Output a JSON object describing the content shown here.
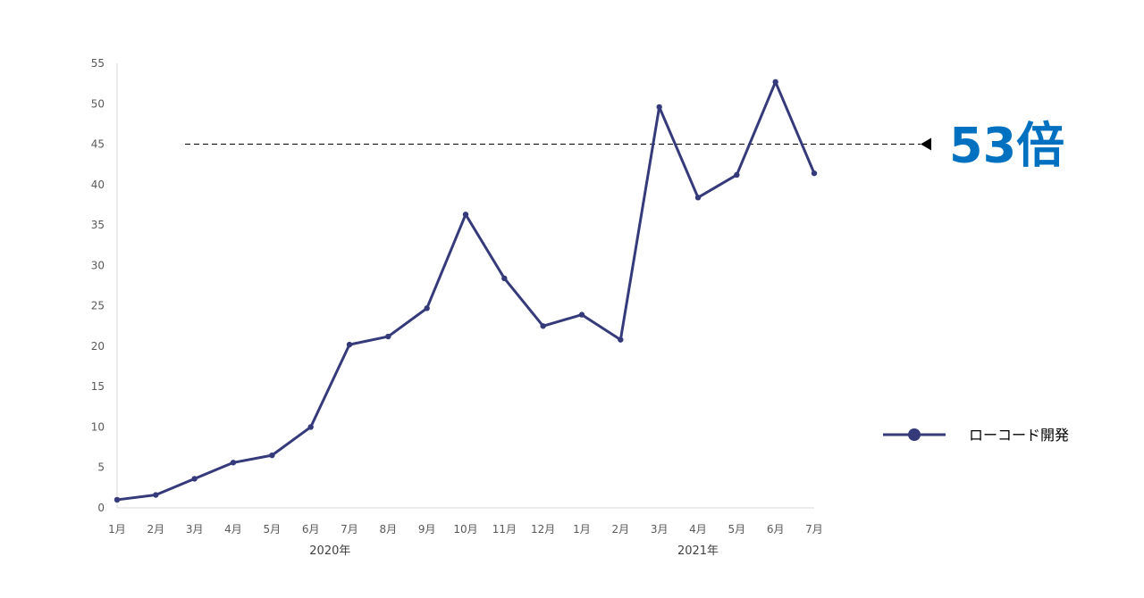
{
  "chart_data": {
    "type": "line",
    "categories": [
      "1月",
      "2月",
      "3月",
      "4月",
      "5月",
      "6月",
      "7月",
      "8月",
      "9月",
      "10月",
      "11月",
      "12月",
      "1月",
      "2月",
      "3月",
      "4月",
      "5月",
      "6月",
      "7月"
    ],
    "year_groups": [
      {
        "label": "2020年",
        "from": 0,
        "to": 11
      },
      {
        "label": "2021年",
        "from": 12,
        "to": 18
      }
    ],
    "series": [
      {
        "name": "ローコード開発",
        "values": [
          1.0,
          1.6,
          3.6,
          5.6,
          6.5,
          10.0,
          20.2,
          21.2,
          24.7,
          36.3,
          28.4,
          22.5,
          23.9,
          20.8,
          49.6,
          38.4,
          41.2,
          52.7,
          41.4
        ]
      }
    ],
    "ylim": [
      0,
      55
    ],
    "yticks": [
      0,
      5,
      10,
      15,
      20,
      25,
      30,
      35,
      40,
      45,
      50,
      55
    ],
    "grid": false,
    "legend_position": "right",
    "annotation": {
      "text": "53倍",
      "reference_value": 45,
      "style": "dashed-line-with-arrow"
    },
    "colors": {
      "series": "#343a7a",
      "callout": "#0070c0",
      "axis": "#d9d9d9",
      "dashed_line": "#000000"
    }
  }
}
